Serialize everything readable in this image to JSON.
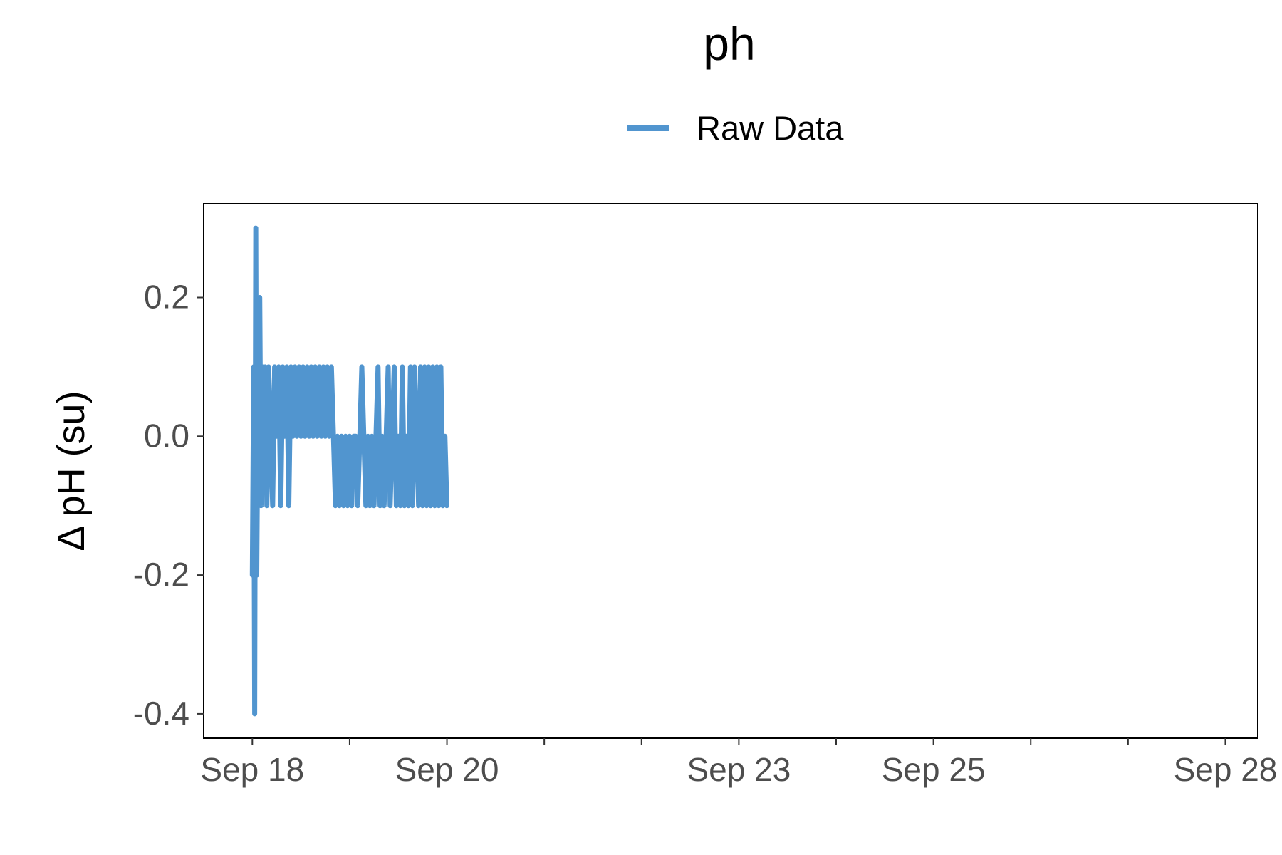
{
  "chart_data": {
    "type": "line",
    "title": "ph",
    "xlabel": "",
    "ylabel": "Δ pH (su)",
    "legend": {
      "position": "top",
      "entries": [
        "Raw Data"
      ]
    },
    "grid": false,
    "series": [
      {
        "name": "Raw Data",
        "color": "#5195cf",
        "x": [
          "2023-09-18 00:00",
          "2023-09-18 00:20",
          "2023-09-18 00:35",
          "2023-09-18 00:50",
          "2023-09-18 01:05",
          "2023-09-18 01:20",
          "2023-09-18 01:35",
          "2023-09-18 01:50",
          "2023-09-18 02:10",
          "2023-09-18 02:30",
          "2023-09-18 02:50",
          "2023-09-18 03:10",
          "2023-09-18 03:35",
          "2023-09-18 04:00",
          "2023-09-18 04:30",
          "2023-09-18 05:00",
          "2023-09-18 05:30",
          "2023-09-18 06:00",
          "2023-09-18 06:30",
          "2023-09-18 07:00",
          "2023-09-18 07:30",
          "2023-09-18 08:00",
          "2023-09-18 08:30",
          "2023-09-18 09:00",
          "2023-09-18 09:30",
          "2023-09-18 10:00",
          "2023-09-18 10:30",
          "2023-09-18 11:00",
          "2023-09-18 11:30",
          "2023-09-18 12:00",
          "2023-09-18 12:30",
          "2023-09-18 13:00",
          "2023-09-18 13:30",
          "2023-09-18 14:00",
          "2023-09-18 14:30",
          "2023-09-18 15:00",
          "2023-09-18 15:30",
          "2023-09-18 16:00",
          "2023-09-18 16:30",
          "2023-09-18 17:00",
          "2023-09-18 17:30",
          "2023-09-18 18:00",
          "2023-09-18 18:30",
          "2023-09-18 19:00",
          "2023-09-18 19:30",
          "2023-09-18 20:00",
          "2023-09-18 20:30",
          "2023-09-18 21:00",
          "2023-09-18 21:30",
          "2023-09-18 22:00",
          "2023-09-18 22:30",
          "2023-09-18 23:00",
          "2023-09-18 23:30",
          "2023-09-19 00:00",
          "2023-09-19 00:30",
          "2023-09-19 01:00",
          "2023-09-19 01:30",
          "2023-09-19 02:00",
          "2023-09-19 02:30",
          "2023-09-19 03:00",
          "2023-09-19 03:30",
          "2023-09-19 04:00",
          "2023-09-19 04:30",
          "2023-09-19 05:00",
          "2023-09-19 05:30",
          "2023-09-19 06:00",
          "2023-09-19 06:30",
          "2023-09-19 07:00",
          "2023-09-19 07:30",
          "2023-09-19 08:00",
          "2023-09-19 08:30",
          "2023-09-19 09:00",
          "2023-09-19 09:30",
          "2023-09-19 10:00",
          "2023-09-19 10:30",
          "2023-09-19 11:00",
          "2023-09-19 11:30",
          "2023-09-19 12:00",
          "2023-09-19 12:30",
          "2023-09-19 13:00",
          "2023-09-19 13:30",
          "2023-09-19 14:00",
          "2023-09-19 14:30",
          "2023-09-19 15:00",
          "2023-09-19 15:30",
          "2023-09-19 16:00",
          "2023-09-19 16:30",
          "2023-09-19 17:00",
          "2023-09-19 17:30",
          "2023-09-19 18:00",
          "2023-09-19 18:30",
          "2023-09-19 19:00",
          "2023-09-19 19:30",
          "2023-09-19 20:00",
          "2023-09-19 20:30",
          "2023-09-19 21:00",
          "2023-09-19 21:30",
          "2023-09-19 22:00",
          "2023-09-19 22:30",
          "2023-09-19 23:00",
          "2023-09-19 23:30",
          "2023-09-19 23:59"
        ],
        "y": [
          -0.2,
          0.1,
          -0.4,
          0.3,
          -0.2,
          0.0,
          -0.1,
          0.2,
          -0.1,
          0.1,
          0.0,
          0.1,
          -0.1,
          0.1,
          0.0,
          -0.1,
          0.1,
          0.0,
          0.1,
          -0.1,
          0.1,
          0.0,
          0.1,
          -0.1,
          0.1,
          0.0,
          0.1,
          0.0,
          0.1,
          0.0,
          0.1,
          0.0,
          0.1,
          0.0,
          0.1,
          0.0,
          0.1,
          0.0,
          0.1,
          0.0,
          0.1,
          0.0,
          0.1,
          0.0,
          0.1,
          0.0,
          -0.1,
          0.0,
          -0.1,
          0.0,
          -0.1,
          0.0,
          -0.1,
          0.0,
          -0.1,
          0.0,
          0.0,
          -0.1,
          0.0,
          0.1,
          0.0,
          -0.1,
          0.0,
          -0.1,
          0.0,
          -0.1,
          0.0,
          0.1,
          -0.1,
          0.0,
          -0.1,
          0.0,
          0.1,
          -0.1,
          0.0,
          0.1,
          -0.1,
          0.0,
          -0.1,
          0.1,
          -0.1,
          0.0,
          -0.1,
          0.1,
          -0.1,
          0.1,
          0.0,
          -0.1,
          0.1,
          -0.1,
          0.1,
          -0.1,
          0.1,
          -0.1,
          0.1,
          -0.1,
          0.1,
          -0.1,
          0.1,
          -0.1,
          0.0,
          -0.1
        ]
      }
    ],
    "x_ticks": [
      {
        "value": "2023-09-18",
        "label": "Sep 18"
      },
      {
        "value": "2023-09-19",
        "label": ""
      },
      {
        "value": "2023-09-20",
        "label": "Sep 20"
      },
      {
        "value": "2023-09-21",
        "label": ""
      },
      {
        "value": "2023-09-22",
        "label": ""
      },
      {
        "value": "2023-09-23",
        "label": "Sep 23"
      },
      {
        "value": "2023-09-24",
        "label": ""
      },
      {
        "value": "2023-09-25",
        "label": "Sep 25"
      },
      {
        "value": "2023-09-26",
        "label": ""
      },
      {
        "value": "2023-09-27",
        "label": ""
      },
      {
        "value": "2023-09-28",
        "label": "Sep 28"
      }
    ],
    "xlim": [
      "2023-09-17 12:00",
      "2023-09-28 08:00"
    ],
    "y_ticks": [
      -0.4,
      -0.2,
      0.0,
      0.2
    ],
    "y_tick_labels": [
      "-0.4",
      "-0.2",
      "0.0",
      "0.2"
    ],
    "ylim": [
      -0.435,
      0.335
    ]
  }
}
